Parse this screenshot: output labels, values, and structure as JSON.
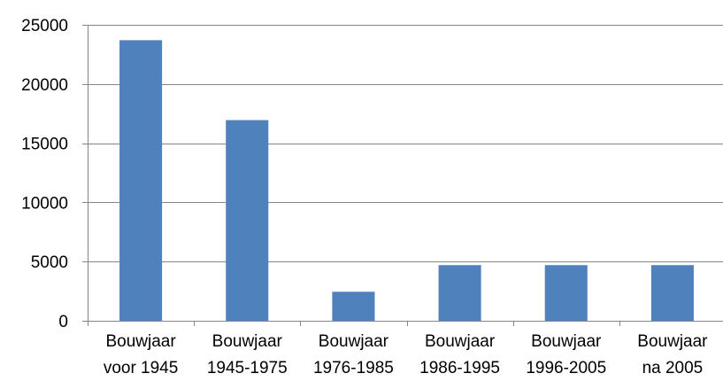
{
  "chart_data": {
    "type": "bar",
    "title": "",
    "xlabel": "",
    "ylabel": "",
    "ylim": [
      0,
      25000
    ],
    "y_ticks": [
      0,
      5000,
      10000,
      15000,
      20000,
      25000
    ],
    "y_tick_labels": [
      "0",
      "5000",
      "10000",
      "15000",
      "20000",
      "25000"
    ],
    "grid": true,
    "legend": "none",
    "bar_color": "#4F81BD",
    "categories": [
      [
        "Bouwjaar",
        "voor 1945"
      ],
      [
        "Bouwjaar",
        "1945-1975"
      ],
      [
        "Bouwjaar",
        "1976-1985"
      ],
      [
        "Bouwjaar",
        "1986-1995"
      ],
      [
        "Bouwjaar",
        "1996-2005"
      ],
      [
        "Bouwjaar",
        "na 2005"
      ]
    ],
    "values": [
      23700,
      16950,
      2450,
      4700,
      4700,
      4700
    ]
  }
}
